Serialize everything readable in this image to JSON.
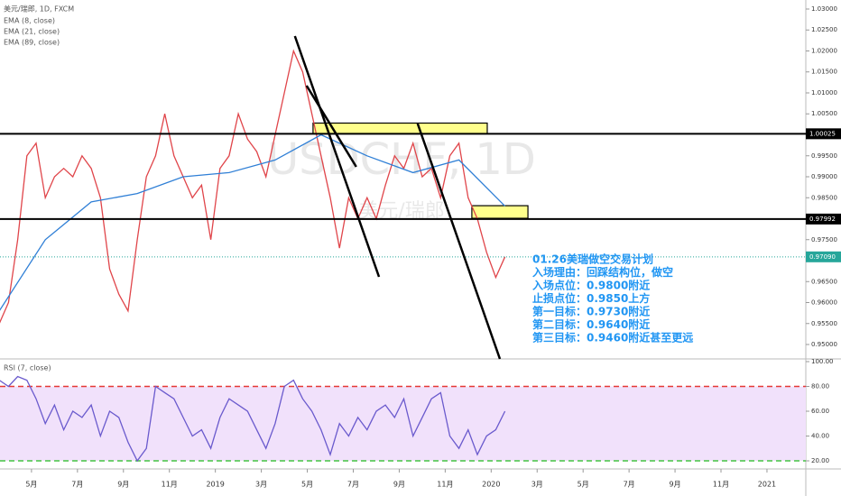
{
  "chart_data": [
    {
      "type": "line",
      "title": "美元/瑞郎, 1D, FXCM",
      "indicators": [
        "EMA (8, close)",
        "EMA (21, close)",
        "EMA (89, close)"
      ],
      "watermark": [
        "USDCHF, 1D",
        "美元/瑞郎"
      ],
      "xlim": [
        2.63,
        37.69
      ],
      "ylim": [
        0.94656,
        1.03215
      ],
      "yticks": [
        {
          "value": 1.03,
          "label": "1.03000"
        },
        {
          "value": 1.025,
          "label": "1.02500"
        },
        {
          "value": 1.02,
          "label": "1.02000"
        },
        {
          "value": 1.015,
          "label": "1.01500"
        },
        {
          "value": 1.01,
          "label": "1.01000"
        },
        {
          "value": 1.005,
          "label": "1.00500"
        },
        {
          "value": 0.995,
          "label": "0.99500"
        },
        {
          "value": 0.99,
          "label": "0.99000"
        },
        {
          "value": 0.985,
          "label": "0.98500"
        },
        {
          "value": 0.975,
          "label": "0.97500"
        },
        {
          "value": 0.965,
          "label": "0.96500"
        },
        {
          "value": 0.96,
          "label": "0.96000"
        },
        {
          "value": 0.955,
          "label": "0.95500"
        },
        {
          "value": 0.95,
          "label": "0.95000"
        }
      ],
      "x": [
        2.6,
        3.0,
        3.4,
        3.8,
        4.2,
        4.6,
        5.0,
        5.4,
        5.8,
        6.2,
        6.6,
        7.0,
        7.4,
        7.8,
        8.2,
        8.6,
        9.0,
        9.4,
        9.8,
        10.2,
        10.6,
        11.0,
        11.4,
        11.8,
        12.2,
        12.6,
        13.0,
        13.4,
        13.8,
        14.2,
        14.6,
        15.0,
        15.4,
        15.8,
        16.2,
        16.6,
        17.0,
        17.4,
        17.8,
        18.2,
        18.6,
        19.0,
        19.4,
        19.8,
        20.2,
        20.6,
        21.0,
        21.4,
        21.8,
        22.2,
        22.6,
        23.0,
        23.4,
        23.8,
        24.2,
        24.6
      ],
      "series": [
        {
          "name": "美元/瑞郎",
          "color": "#e0454a",
          "values": [
            0.955,
            0.96,
            0.975,
            0.995,
            0.998,
            0.985,
            0.99,
            0.992,
            0.99,
            0.995,
            0.992,
            0.985,
            0.968,
            0.962,
            0.958,
            0.975,
            0.99,
            0.995,
            1.005,
            0.995,
            0.99,
            0.985,
            0.988,
            0.975,
            0.992,
            0.995,
            1.005,
            0.999,
            0.996,
            0.99,
            1.0,
            1.01,
            1.02,
            1.015,
            1.005,
            0.995,
            0.985,
            0.973,
            0.985,
            0.98,
            0.985,
            0.98,
            0.988,
            0.995,
            0.992,
            0.998,
            0.99,
            0.992,
            0.985,
            0.995,
            0.998,
            0.985,
            0.98,
            0.972,
            0.966,
            0.9709
          ]
        },
        {
          "name": "EMA (89, close)",
          "color": "#2f7fd6",
          "x": [
            2.6,
            4.6,
            6.6,
            8.6,
            10.6,
            12.6,
            14.6,
            16.6,
            18.6,
            20.6,
            22.6,
            24.6
          ],
          "values": [
            0.958,
            0.975,
            0.984,
            0.986,
            0.99,
            0.991,
            0.994,
            1.0,
            0.995,
            0.991,
            0.994,
            0.983
          ]
        }
      ],
      "levels": [
        {
          "value": 1.00025,
          "label": "1.00025",
          "color": "#000000",
          "style": "solid"
        },
        {
          "value": 0.97992,
          "label": "0.97992",
          "color": "#000000",
          "style": "solid"
        },
        {
          "value": 0.9709,
          "label": "0.97090",
          "color": "#26a69a",
          "style": "dotted"
        }
      ],
      "zones": [
        {
          "x1": 16.25,
          "x2": 23.83,
          "y1": 1.0028,
          "y2": 1.0003,
          "color": "#ffff8c"
        },
        {
          "x1": 23.16,
          "x2": 25.6,
          "y1": 0.9831,
          "y2": 0.9801,
          "color": "#ffff8c"
        }
      ],
      "trendlines": [
        {
          "x1": 15.46,
          "y1": 1.02355,
          "x2": 19.12,
          "y2": 0.96613
        },
        {
          "x1": 15.97,
          "y1": 1.01172,
          "x2": 18.13,
          "y2": 0.99237
        },
        {
          "x1": 20.8,
          "y1": 1.00269,
          "x2": 24.38,
          "y2": 0.94656
        }
      ],
      "annotation": [
        "01.26美瑞做空交易计划",
        "入场理由：回踩结构位，做空",
        "入场点位：0.9800附近",
        "止损点位：0.9850上方",
        "第一目标：0.9730附近",
        "第二目标：0.9640附近",
        "第三目标：0.9460附近甚至更远"
      ]
    },
    {
      "type": "line",
      "title": "RSI (7, close)",
      "xlim": [
        2.63,
        37.69
      ],
      "ylim": [
        13.45,
        102.18
      ],
      "band": [
        20,
        80
      ],
      "yticks": [
        {
          "value": 100,
          "label": "100.00"
        },
        {
          "value": 80,
          "label": "80.00"
        },
        {
          "value": 60,
          "label": "60.00"
        },
        {
          "value": 40,
          "label": "40.00"
        },
        {
          "value": 20,
          "label": "20.00"
        }
      ],
      "xticks": [
        {
          "value": 4,
          "label": "5月"
        },
        {
          "value": 6,
          "label": "7月"
        },
        {
          "value": 8,
          "label": "9月"
        },
        {
          "value": 10,
          "label": "11月"
        },
        {
          "value": 12,
          "label": "2019"
        },
        {
          "value": 14,
          "label": "3月"
        },
        {
          "value": 16,
          "label": "5月"
        },
        {
          "value": 18,
          "label": "7月"
        },
        {
          "value": 20,
          "label": "9月"
        },
        {
          "value": 22,
          "label": "11月"
        },
        {
          "value": 24,
          "label": "2020"
        },
        {
          "value": 26,
          "label": "3月"
        },
        {
          "value": 28,
          "label": "5月"
        },
        {
          "value": 30,
          "label": "7月"
        },
        {
          "value": 32,
          "label": "9月"
        },
        {
          "value": 34,
          "label": "11月"
        },
        {
          "value": 36,
          "label": "2021"
        }
      ],
      "x": [
        2.6,
        3.0,
        3.4,
        3.8,
        4.2,
        4.6,
        5.0,
        5.4,
        5.8,
        6.2,
        6.6,
        7.0,
        7.4,
        7.8,
        8.2,
        8.6,
        9.0,
        9.4,
        9.8,
        10.2,
        10.6,
        11.0,
        11.4,
        11.8,
        12.2,
        12.6,
        13.0,
        13.4,
        13.8,
        14.2,
        14.6,
        15.0,
        15.4,
        15.8,
        16.2,
        16.6,
        17.0,
        17.4,
        17.8,
        18.2,
        18.6,
        19.0,
        19.4,
        19.8,
        20.2,
        20.6,
        21.0,
        21.4,
        21.8,
        22.2,
        22.6,
        23.0,
        23.4,
        23.8,
        24.2,
        24.6
      ],
      "series": [
        {
          "name": "RSI",
          "color": "#6a5acd",
          "values": [
            85,
            80,
            88,
            85,
            70,
            50,
            65,
            45,
            60,
            55,
            65,
            40,
            60,
            55,
            35,
            20,
            30,
            80,
            75,
            70,
            55,
            40,
            45,
            30,
            55,
            70,
            65,
            60,
            45,
            30,
            50,
            80,
            85,
            70,
            60,
            45,
            25,
            50,
            40,
            55,
            45,
            60,
            65,
            55,
            70,
            40,
            55,
            70,
            75,
            40,
            30,
            45,
            25,
            40,
            45,
            60
          ]
        }
      ]
    }
  ]
}
